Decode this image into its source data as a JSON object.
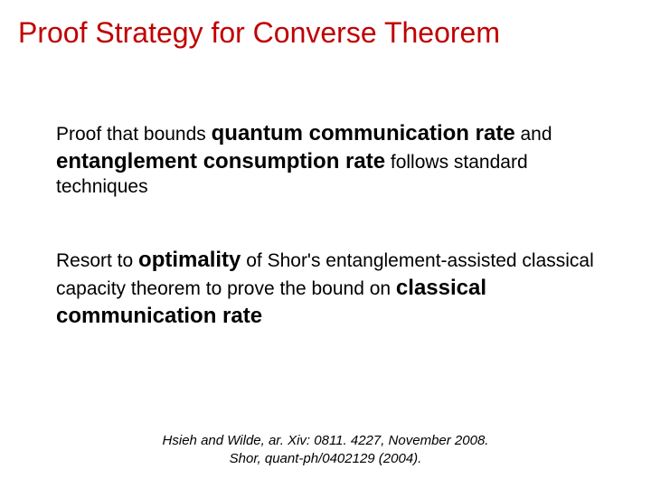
{
  "title": "Proof Strategy for Converse Theorem",
  "para1": {
    "t1": "Proof that bounds ",
    "b1": "quantum communication rate",
    "t2": " and ",
    "b2": "entanglement consumption rate",
    "t3": " follows standard techniques"
  },
  "para2": {
    "t1": "Resort to ",
    "b1": "optimality",
    "t2": " of Shor's entanglement-assisted classical capacity theorem to prove the bound on ",
    "b2": "classical communication rate"
  },
  "cite1": "Hsieh and Wilde, ar. Xiv: 0811. 4227, November 2008.",
  "cite2": "Shor, quant-ph/0402129 (2004).",
  "colors": {
    "title": "#c00000",
    "text": "#000000",
    "background": "#ffffff"
  },
  "fonts": {
    "title_size": 32,
    "body_size": 21,
    "bold_size": 24,
    "cite_size": 15
  }
}
